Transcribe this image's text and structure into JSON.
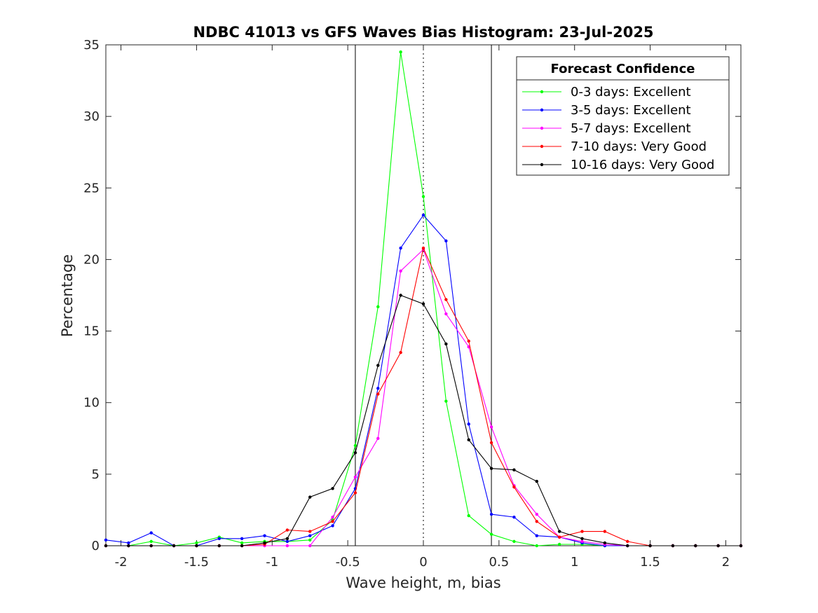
{
  "chart_data": {
    "type": "line",
    "title": "NDBC 41013 vs GFS Waves Bias Histogram: 23-Jul-2025",
    "xlabel": "Wave height, m, bias",
    "ylabel": "Percentage",
    "xlim": [
      -2.1,
      2.1
    ],
    "ylim": [
      0,
      35
    ],
    "xticks": [
      -2,
      -1.5,
      -1,
      -0.5,
      0,
      0.5,
      1,
      1.5,
      2
    ],
    "xtick_labels": [
      "-2",
      "-1.5",
      "-1",
      "-0.5",
      "0",
      "0.5",
      "1",
      "1.5",
      "2"
    ],
    "yticks": [
      0,
      5,
      10,
      15,
      20,
      25,
      30,
      35
    ],
    "ytick_labels": [
      "0",
      "5",
      "10",
      "15",
      "20",
      "25",
      "30",
      "35"
    ],
    "grid": false,
    "vertical_lines": [
      {
        "x": -0.45,
        "style": "solid"
      },
      {
        "x": 0,
        "style": "dotted"
      },
      {
        "x": 0.45,
        "style": "solid"
      }
    ],
    "legend": {
      "title": "Forecast Confidence",
      "placement": "top-right"
    },
    "x": [
      -2.1,
      -1.95,
      -1.8,
      -1.65,
      -1.5,
      -1.35,
      -1.2,
      -1.05,
      -0.9,
      -0.75,
      -0.6,
      -0.45,
      -0.3,
      -0.15,
      0,
      0.15,
      0.3,
      0.45,
      0.6,
      0.75,
      0.9,
      1.05,
      1.2,
      1.35,
      1.5,
      1.65,
      1.8,
      1.95,
      2.1
    ],
    "series": [
      {
        "name": "0-3 days: Excellent",
        "color": "#00ff00",
        "values": [
          0,
          0,
          0.3,
          0,
          0.2,
          0.6,
          0.2,
          0.3,
          0.3,
          0.4,
          1.8,
          7.0,
          16.7,
          34.5,
          24.4,
          10.1,
          2.1,
          0.8,
          0.3,
          0,
          0.1,
          0.1,
          0,
          0,
          0,
          0,
          0,
          0,
          0
        ]
      },
      {
        "name": "3-5 days: Excellent",
        "color": "#0000ff",
        "values": [
          0.4,
          0.2,
          0.9,
          0,
          0,
          0.5,
          0.5,
          0.7,
          0.3,
          0.7,
          1.4,
          4.0,
          11.0,
          20.8,
          23.1,
          21.3,
          8.5,
          2.2,
          2.0,
          0.7,
          0.6,
          0.2,
          0,
          0,
          0,
          0,
          0,
          0,
          0
        ]
      },
      {
        "name": "5-7 days: Excellent",
        "color": "#ff00ff",
        "values": [
          0,
          0,
          0,
          0,
          0,
          0,
          0,
          0,
          0,
          0,
          2.0,
          4.8,
          7.5,
          19.2,
          20.7,
          16.2,
          13.9,
          8.3,
          4.2,
          2.2,
          0.6,
          0.3,
          0.1,
          0,
          0,
          0,
          0,
          0,
          0
        ]
      },
      {
        "name": "7-10 days: Very Good",
        "color": "#ff0000",
        "values": [
          0,
          0,
          0,
          0,
          0,
          0,
          0,
          0.1,
          1.1,
          1.0,
          1.7,
          3.7,
          10.6,
          13.5,
          20.8,
          17.2,
          14.3,
          7.2,
          4.1,
          1.7,
          0.6,
          1.0,
          1.0,
          0.3,
          0,
          0,
          0,
          0,
          0
        ]
      },
      {
        "name": "10-16 days: Very Good",
        "color": "#000000",
        "values": [
          0,
          0,
          0,
          0,
          0,
          0,
          0,
          0.2,
          0.5,
          3.4,
          4.0,
          6.5,
          12.6,
          17.5,
          16.9,
          14.1,
          7.4,
          5.4,
          5.3,
          4.5,
          1.0,
          0.5,
          0.2,
          0,
          0,
          0,
          0,
          0,
          0
        ]
      }
    ]
  }
}
